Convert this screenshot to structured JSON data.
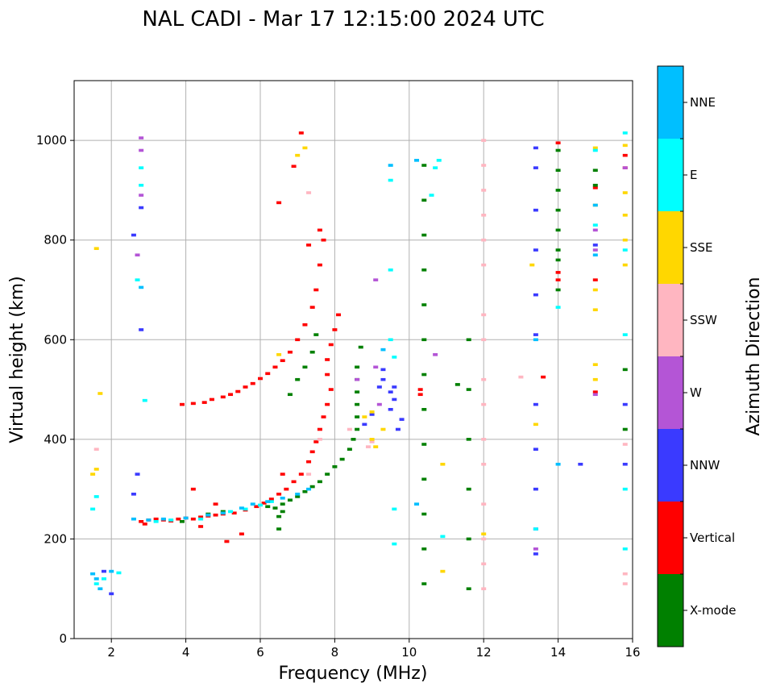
{
  "chart_data": {
    "type": "scatter",
    "title": "NAL CADI - Mar 17 12:15:00 2024 UTC",
    "xlabel": "Frequency (MHz)",
    "ylabel": "Virtual height (km)",
    "xlim": [
      1,
      16
    ],
    "ylim": [
      0,
      1120
    ],
    "xticks": [
      2,
      4,
      6,
      8,
      10,
      12,
      14,
      16
    ],
    "yticks": [
      0,
      200,
      400,
      600,
      800,
      1000
    ],
    "grid": true,
    "colorbar": {
      "label": "Azimuth Direction",
      "categories": [
        "X-mode",
        "Vertical",
        "NNW",
        "W",
        "SSW",
        "SSE",
        "E",
        "NNE"
      ],
      "colors": [
        "#008000",
        "#ff0000",
        "#3a3aff",
        "#b455d6",
        "#ffb6c1",
        "#ffd700",
        "#00ffff",
        "#00bfff"
      ]
    },
    "series": [
      {
        "name": "Vertical",
        "color": "#ff0000",
        "points": [
          [
            2.8,
            235
          ],
          [
            3.0,
            238
          ],
          [
            3.2,
            240
          ],
          [
            3.4,
            238
          ],
          [
            3.6,
            236
          ],
          [
            3.8,
            240
          ],
          [
            4.0,
            242
          ],
          [
            4.2,
            240
          ],
          [
            4.4,
            244
          ],
          [
            4.6,
            246
          ],
          [
            4.8,
            248
          ],
          [
            5.0,
            250
          ],
          [
            5.3,
            252
          ],
          [
            5.6,
            258
          ],
          [
            5.9,
            265
          ],
          [
            6.1,
            272
          ],
          [
            6.3,
            280
          ],
          [
            6.5,
            290
          ],
          [
            6.7,
            300
          ],
          [
            6.9,
            315
          ],
          [
            7.1,
            330
          ],
          [
            7.3,
            355
          ],
          [
            7.4,
            375
          ],
          [
            7.5,
            395
          ],
          [
            7.6,
            420
          ],
          [
            7.7,
            445
          ],
          [
            7.8,
            470
          ],
          [
            7.9,
            500
          ],
          [
            7.8,
            530
          ],
          [
            7.8,
            560
          ],
          [
            7.9,
            590
          ],
          [
            8.0,
            620
          ],
          [
            8.1,
            650
          ],
          [
            3.9,
            470
          ],
          [
            4.2,
            472
          ],
          [
            4.5,
            474
          ],
          [
            4.7,
            480
          ],
          [
            5.0,
            485
          ],
          [
            5.2,
            490
          ],
          [
            5.4,
            496
          ],
          [
            5.6,
            505
          ],
          [
            5.8,
            512
          ],
          [
            6.0,
            522
          ],
          [
            6.2,
            532
          ],
          [
            6.4,
            545
          ],
          [
            6.6,
            558
          ],
          [
            6.8,
            575
          ],
          [
            7.0,
            600
          ],
          [
            7.2,
            630
          ],
          [
            7.4,
            665
          ],
          [
            7.5,
            700
          ],
          [
            7.6,
            750
          ],
          [
            7.7,
            800
          ],
          [
            6.5,
            875
          ],
          [
            6.9,
            948
          ],
          [
            7.1,
            1015
          ],
          [
            4.2,
            300
          ],
          [
            4.8,
            270
          ],
          [
            5.5,
            210
          ],
          [
            5.1,
            195
          ],
          [
            4.4,
            225
          ],
          [
            2.9,
            230
          ],
          [
            6.6,
            330
          ],
          [
            7.3,
            790
          ],
          [
            7.6,
            820
          ],
          [
            10.3,
            500
          ],
          [
            10.3,
            490
          ],
          [
            14.0,
            995
          ],
          [
            14.0,
            735
          ],
          [
            14.0,
            720
          ],
          [
            15.8,
            970
          ],
          [
            15.8,
            945
          ],
          [
            15.0,
            720
          ],
          [
            15.0,
            905
          ],
          [
            15.0,
            495
          ],
          [
            13.6,
            525
          ]
        ]
      },
      {
        "name": "X-mode",
        "color": "#008000",
        "points": [
          [
            6.2,
            265
          ],
          [
            6.4,
            262
          ],
          [
            6.6,
            270
          ],
          [
            6.8,
            278
          ],
          [
            7.0,
            285
          ],
          [
            7.2,
            295
          ],
          [
            7.4,
            305
          ],
          [
            7.6,
            315
          ],
          [
            7.8,
            330
          ],
          [
            8.0,
            345
          ],
          [
            8.2,
            360
          ],
          [
            8.4,
            380
          ],
          [
            8.5,
            400
          ],
          [
            8.6,
            420
          ],
          [
            8.6,
            445
          ],
          [
            8.6,
            470
          ],
          [
            8.6,
            495
          ],
          [
            8.6,
            520
          ],
          [
            8.6,
            545
          ],
          [
            8.7,
            585
          ],
          [
            6.5,
            245
          ],
          [
            6.6,
            255
          ],
          [
            6.5,
            220
          ],
          [
            6.8,
            490
          ],
          [
            7.0,
            520
          ],
          [
            7.2,
            545
          ],
          [
            7.4,
            575
          ],
          [
            7.5,
            610
          ],
          [
            3.9,
            235
          ],
          [
            4.6,
            250
          ],
          [
            5.0,
            255
          ],
          [
            10.4,
            950
          ],
          [
            10.4,
            880
          ],
          [
            10.4,
            810
          ],
          [
            10.4,
            740
          ],
          [
            10.4,
            670
          ],
          [
            10.4,
            600
          ],
          [
            10.4,
            530
          ],
          [
            10.4,
            460
          ],
          [
            10.4,
            390
          ],
          [
            10.4,
            320
          ],
          [
            10.4,
            250
          ],
          [
            10.4,
            180
          ],
          [
            10.4,
            110
          ],
          [
            14.0,
            980
          ],
          [
            14.0,
            940
          ],
          [
            14.0,
            900
          ],
          [
            14.0,
            860
          ],
          [
            14.0,
            820
          ],
          [
            14.0,
            780
          ],
          [
            14.0,
            760
          ],
          [
            14.0,
            700
          ],
          [
            11.6,
            600
          ],
          [
            11.6,
            500
          ],
          [
            11.6,
            400
          ],
          [
            11.6,
            300
          ],
          [
            11.6,
            200
          ],
          [
            11.6,
            100
          ],
          [
            15.0,
            940
          ],
          [
            15.0,
            910
          ],
          [
            15.8,
            540
          ],
          [
            15.8,
            420
          ],
          [
            11.3,
            510
          ]
        ]
      },
      {
        "name": "NNW",
        "color": "#3a3aff",
        "points": [
          [
            9.3,
            540
          ],
          [
            9.3,
            520
          ],
          [
            9.2,
            505
          ],
          [
            9.5,
            495
          ],
          [
            9.6,
            480
          ],
          [
            9.5,
            460
          ],
          [
            9.8,
            440
          ],
          [
            9.7,
            420
          ],
          [
            8.8,
            430
          ],
          [
            9.0,
            450
          ],
          [
            13.4,
            985
          ],
          [
            13.4,
            945
          ],
          [
            13.4,
            860
          ],
          [
            13.4,
            780
          ],
          [
            13.4,
            690
          ],
          [
            13.4,
            610
          ],
          [
            13.4,
            470
          ],
          [
            13.4,
            380
          ],
          [
            13.4,
            300
          ],
          [
            13.4,
            220
          ],
          [
            13.4,
            170
          ],
          [
            2.6,
            810
          ],
          [
            2.8,
            865
          ],
          [
            2.8,
            620
          ],
          [
            2.7,
            330
          ],
          [
            2.6,
            290
          ],
          [
            1.8,
            135
          ],
          [
            2.0,
            90
          ],
          [
            15.8,
            470
          ],
          [
            15.8,
            350
          ],
          [
            15.0,
            790
          ],
          [
            14.6,
            350
          ],
          [
            9.6,
            505
          ]
        ]
      },
      {
        "name": "W",
        "color": "#b455d6",
        "points": [
          [
            9.1,
            545
          ],
          [
            9.2,
            470
          ],
          [
            8.6,
            520
          ],
          [
            15.0,
            820
          ],
          [
            15.0,
            780
          ],
          [
            15.8,
            945
          ],
          [
            2.8,
            1005
          ],
          [
            2.8,
            980
          ],
          [
            2.8,
            890
          ],
          [
            2.7,
            770
          ],
          [
            10.7,
            570
          ],
          [
            9.1,
            720
          ],
          [
            13.4,
            180
          ],
          [
            15.0,
            490
          ]
        ]
      },
      {
        "name": "SSW",
        "color": "#ffb6c1",
        "points": [
          [
            12.0,
            1000
          ],
          [
            12.0,
            950
          ],
          [
            12.0,
            900
          ],
          [
            12.0,
            850
          ],
          [
            12.0,
            800
          ],
          [
            12.0,
            750
          ],
          [
            12.0,
            650
          ],
          [
            12.0,
            600
          ],
          [
            12.0,
            520
          ],
          [
            12.0,
            470
          ],
          [
            12.0,
            400
          ],
          [
            12.0,
            350
          ],
          [
            12.0,
            270
          ],
          [
            12.0,
            200
          ],
          [
            12.0,
            150
          ],
          [
            12.0,
            100
          ],
          [
            9.0,
            395
          ],
          [
            8.9,
            385
          ],
          [
            8.4,
            420
          ],
          [
            7.6,
            400
          ],
          [
            7.3,
            330
          ],
          [
            15.8,
            390
          ],
          [
            15.8,
            130
          ],
          [
            15.8,
            110
          ],
          [
            13.0,
            525
          ],
          [
            7.3,
            895
          ],
          [
            1.6,
            380
          ]
        ]
      },
      {
        "name": "SSE",
        "color": "#ffd700",
        "points": [
          [
            9.1,
            385
          ],
          [
            9.0,
            400
          ],
          [
            9.0,
            455
          ],
          [
            8.8,
            445
          ],
          [
            7.0,
            970
          ],
          [
            7.2,
            985
          ],
          [
            6.5,
            570
          ],
          [
            15.0,
            985
          ],
          [
            15.0,
            870
          ],
          [
            15.0,
            700
          ],
          [
            15.0,
            660
          ],
          [
            15.0,
            550
          ],
          [
            15.0,
            520
          ],
          [
            15.8,
            850
          ],
          [
            15.8,
            800
          ],
          [
            15.8,
            750
          ],
          [
            15.8,
            990
          ],
          [
            15.8,
            895
          ],
          [
            13.3,
            750
          ],
          [
            13.4,
            430
          ],
          [
            1.5,
            330
          ],
          [
            1.6,
            340
          ],
          [
            1.7,
            492
          ],
          [
            1.6,
            783
          ],
          [
            12.0,
            210
          ],
          [
            10.9,
            350
          ],
          [
            10.9,
            135
          ],
          [
            9.3,
            420
          ]
        ]
      },
      {
        "name": "E",
        "color": "#00ffff",
        "points": [
          [
            3.2,
            235
          ],
          [
            3.6,
            238
          ],
          [
            4.4,
            240
          ],
          [
            5.2,
            255
          ],
          [
            5.6,
            260
          ],
          [
            6.0,
            268
          ],
          [
            6.3,
            275
          ],
          [
            2.9,
            478
          ],
          [
            2.8,
            945
          ],
          [
            2.8,
            910
          ],
          [
            2.7,
            720
          ],
          [
            1.5,
            260
          ],
          [
            1.6,
            285
          ],
          [
            2.2,
            132
          ],
          [
            10.8,
            960
          ],
          [
            10.9,
            205
          ],
          [
            10.6,
            890
          ],
          [
            10.7,
            945
          ],
          [
            9.5,
            920
          ],
          [
            9.5,
            740
          ],
          [
            9.5,
            600
          ],
          [
            9.6,
            565
          ],
          [
            9.6,
            260
          ],
          [
            9.6,
            190
          ],
          [
            15.8,
            1015
          ],
          [
            15.8,
            780
          ],
          [
            15.8,
            610
          ],
          [
            15.8,
            300
          ],
          [
            15.8,
            180
          ],
          [
            15.0,
            980
          ],
          [
            15.0,
            830
          ],
          [
            13.4,
            220
          ],
          [
            14.0,
            665
          ],
          [
            1.6,
            110
          ],
          [
            1.8,
            120
          ]
        ]
      },
      {
        "name": "NNE",
        "color": "#00bfff",
        "points": [
          [
            2.6,
            240
          ],
          [
            3.0,
            238
          ],
          [
            3.4,
            240
          ],
          [
            4.0,
            242
          ],
          [
            4.6,
            248
          ],
          [
            5.0,
            252
          ],
          [
            5.5,
            262
          ],
          [
            5.8,
            270
          ],
          [
            6.2,
            275
          ],
          [
            6.6,
            282
          ],
          [
            7.0,
            290
          ],
          [
            7.3,
            300
          ],
          [
            1.5,
            130
          ],
          [
            1.6,
            120
          ],
          [
            1.7,
            100
          ],
          [
            2.0,
            135
          ],
          [
            9.5,
            950
          ],
          [
            10.2,
            960
          ],
          [
            10.2,
            270
          ],
          [
            15.0,
            870
          ],
          [
            15.0,
            770
          ],
          [
            13.4,
            600
          ],
          [
            2.8,
            705
          ],
          [
            9.3,
            580
          ],
          [
            14.0,
            350
          ]
        ]
      }
    ]
  }
}
